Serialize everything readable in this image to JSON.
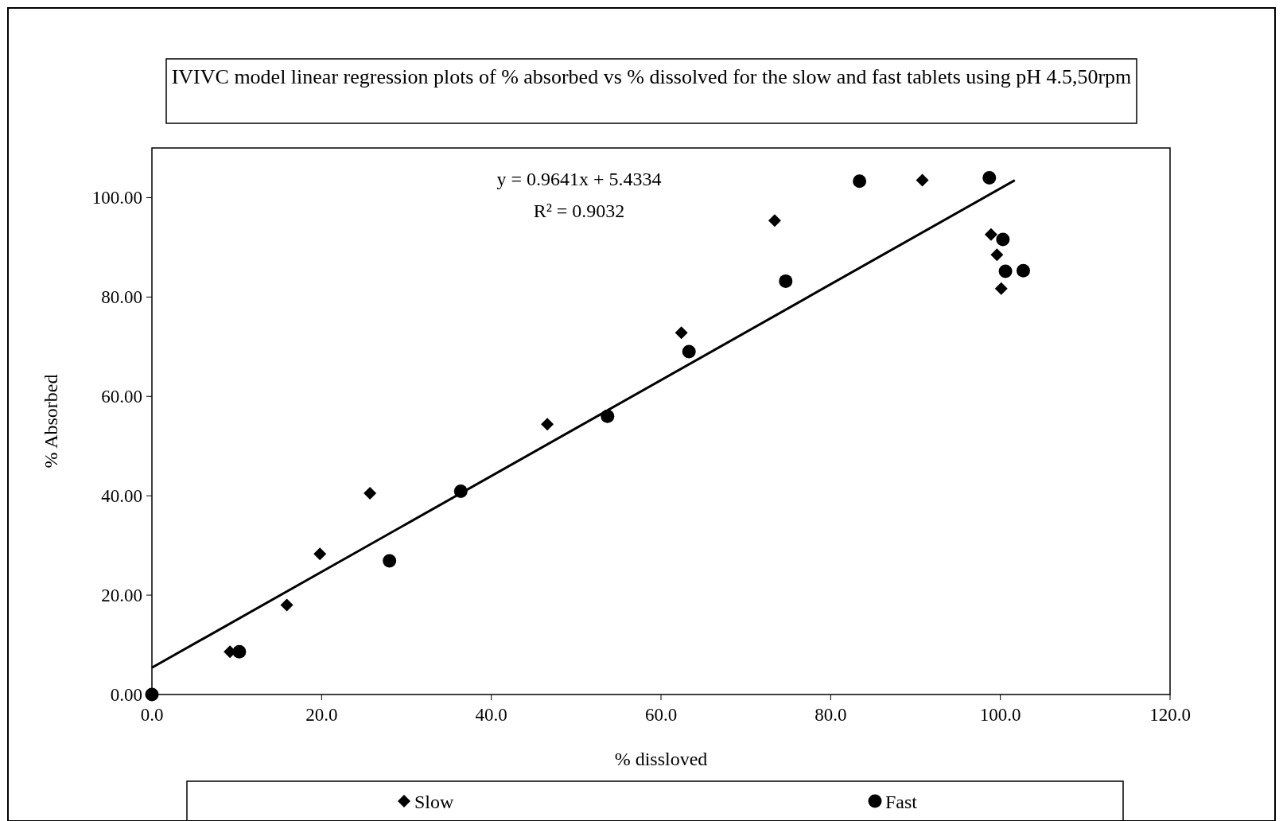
{
  "chart_data": {
    "type": "scatter",
    "title": "IVIVC model linear regression plots of % absorbed vs % dissolved for the slow and fast tablets using pH 4.5,50rpm",
    "xlabel": "% dissloved",
    "ylabel": "% Absorbed",
    "xlim": [
      0,
      120
    ],
    "ylim": [
      0,
      110
    ],
    "xticks": [
      {
        "value": 0,
        "label": "0.0"
      },
      {
        "value": 20,
        "label": "20.0"
      },
      {
        "value": 40,
        "label": "40.0"
      },
      {
        "value": 60,
        "label": "60.0"
      },
      {
        "value": 80,
        "label": "80.0"
      },
      {
        "value": 100,
        "label": "100.0"
      },
      {
        "value": 120,
        "label": "120.0"
      }
    ],
    "yticks": [
      {
        "value": 0,
        "label": "0.00"
      },
      {
        "value": 20,
        "label": "20.00"
      },
      {
        "value": 40,
        "label": "40.00"
      },
      {
        "value": 60,
        "label": "60.00"
      },
      {
        "value": 80,
        "label": "80.00"
      },
      {
        "value": 100,
        "label": "100.00"
      }
    ],
    "grid": false,
    "legend": "bottom",
    "annotations": [
      "y = 0.9641x + 5.4334",
      "R² = 0.9032"
    ],
    "series": [
      {
        "name": "Slow",
        "color": "#000000",
        "marker": "diamond",
        "x": [
          9.2,
          15.9,
          19.8,
          25.7,
          46.6,
          62.4,
          73.4,
          90.8,
          98.9,
          99.6,
          100.1
        ],
        "values": [
          8.6,
          18.0,
          28.3,
          40.5,
          54.4,
          72.8,
          95.4,
          103.5,
          92.6,
          88.5,
          81.7
        ]
      },
      {
        "name": "Fast",
        "color": "#000000",
        "marker": "circle",
        "x": [
          0,
          10.3,
          28.0,
          36.4,
          53.7,
          63.3,
          74.7,
          83.4,
          98.7,
          100.3,
          100.6,
          102.7
        ],
        "values": [
          0,
          8.6,
          26.9,
          40.9,
          56.0,
          69.0,
          83.2,
          103.3,
          104.0,
          91.6,
          85.2,
          85.3
        ]
      },
      {
        "type": "line",
        "color": "#000000",
        "marker": "none",
        "line_style": "solid",
        "x": [
          0,
          101.7
        ],
        "values": [
          5.4,
          103.5
        ]
      }
    ]
  }
}
